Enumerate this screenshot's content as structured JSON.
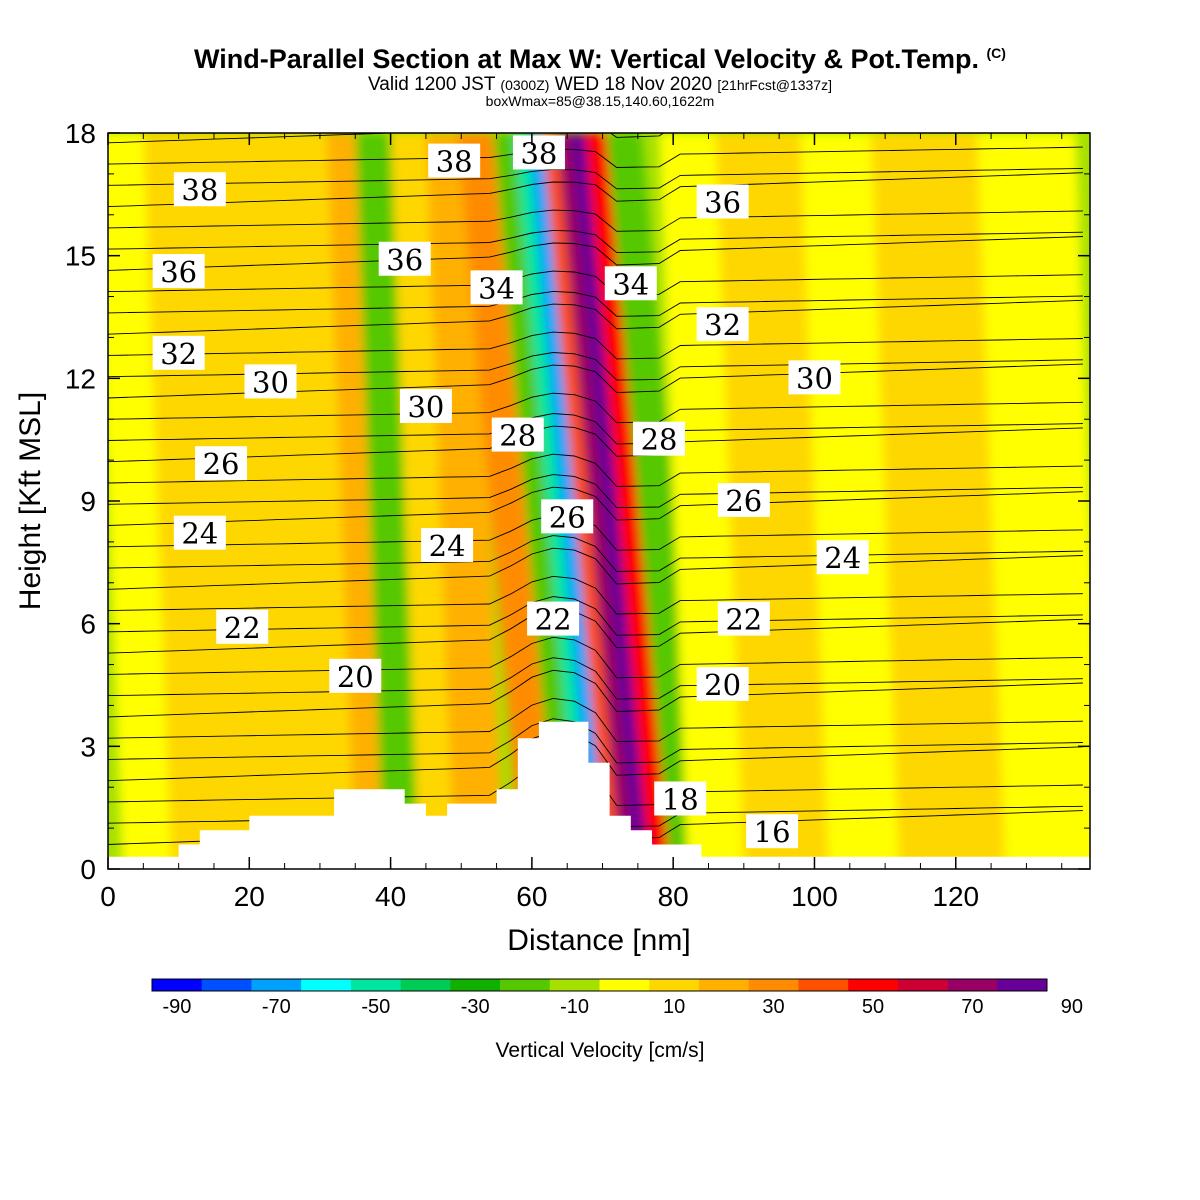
{
  "chart_data": {
    "type": "heatmap",
    "title": "Wind-Parallel Section at Max W: Vertical Velocity & Pot.Temp.",
    "title_mark": "(C)",
    "subtitle_main": "Valid 1200 JST",
    "subtitle_utc": "(0300Z)",
    "subtitle_date": "WED 18 Nov 2020",
    "subtitle_fcst": "[21hrFcst@1337z]",
    "subtitle2": "boxWmax=85@38.15,140.60,1622m",
    "xlabel": "Distance [nm]",
    "ylabel": "Height [Kft MSL]",
    "xlim": [
      0,
      139
    ],
    "ylim": [
      0,
      18
    ],
    "x_ticks": [
      0,
      20,
      40,
      60,
      80,
      100,
      120
    ],
    "y_ticks": [
      0,
      3,
      6,
      9,
      12,
      15,
      18
    ],
    "colorbar": {
      "label": "Vertical Velocity [cm/s]",
      "ticks": [
        -90,
        -70,
        -50,
        -30,
        -10,
        10,
        30,
        50,
        70,
        90
      ],
      "colors": [
        "#0000ff",
        "#0050ff",
        "#00a0ff",
        "#00ffff",
        "#00e6a0",
        "#00cc55",
        "#11b000",
        "#55c800",
        "#a6e000",
        "#ffff00",
        "#ffd700",
        "#ffb000",
        "#ff8c00",
        "#ff5000",
        "#ff0000",
        "#cc0033",
        "#990066",
        "#660099"
      ]
    },
    "velocity_bands": [
      {
        "x0": 0,
        "x1": 7,
        "value": -5
      },
      {
        "x0": 7,
        "x1": 20,
        "value": 5
      },
      {
        "x0": 20,
        "x1": 33,
        "value": 3
      },
      {
        "x0": 33,
        "x1": 37,
        "value": 15
      },
      {
        "x0": 37,
        "x1": 42,
        "value": -22
      },
      {
        "x0": 42,
        "x1": 47,
        "value": 5
      },
      {
        "x0": 47,
        "x1": 54,
        "value": 18
      },
      {
        "x0": 54,
        "x1": 59,
        "value": 25
      },
      {
        "x0": 59,
        "x1": 62,
        "value": -25
      },
      {
        "x0": 62,
        "x1": 64,
        "value": -55
      },
      {
        "x0": 64,
        "x1": 66,
        "value": -80
      },
      {
        "x0": 66,
        "x1": 68,
        "value": 35
      },
      {
        "x0": 68,
        "x1": 70,
        "value": 65
      },
      {
        "x0": 70,
        "x1": 72,
        "value": 85
      },
      {
        "x0": 72,
        "x1": 75,
        "value": 45
      },
      {
        "x0": 75,
        "x1": 80,
        "value": -25
      },
      {
        "x0": 80,
        "x1": 88,
        "value": -8
      },
      {
        "x0": 88,
        "x1": 100,
        "value": 5
      },
      {
        "x0": 100,
        "x1": 110,
        "value": -5
      },
      {
        "x0": 110,
        "x1": 125,
        "value": 5
      },
      {
        "x0": 125,
        "x1": 139,
        "value": -5
      }
    ],
    "terrain": [
      [
        0,
        0.3
      ],
      [
        10,
        0.3
      ],
      [
        10,
        0.6
      ],
      [
        13,
        0.6
      ],
      [
        13,
        0.95
      ],
      [
        20,
        0.95
      ],
      [
        20,
        1.3
      ],
      [
        32,
        1.3
      ],
      [
        32,
        1.95
      ],
      [
        42,
        1.95
      ],
      [
        42,
        1.6
      ],
      [
        45,
        1.6
      ],
      [
        45,
        1.3
      ],
      [
        48,
        1.3
      ],
      [
        48,
        1.6
      ],
      [
        55,
        1.6
      ],
      [
        55,
        1.95
      ],
      [
        58,
        1.95
      ],
      [
        58,
        3.2
      ],
      [
        61,
        3.2
      ],
      [
        61,
        3.6
      ],
      [
        68,
        3.6
      ],
      [
        68,
        2.6
      ],
      [
        71,
        2.6
      ],
      [
        71,
        1.3
      ],
      [
        74,
        1.3
      ],
      [
        74,
        0.95
      ],
      [
        77,
        0.95
      ],
      [
        77,
        0.6
      ],
      [
        84,
        0.6
      ],
      [
        84,
        0.3
      ],
      [
        139,
        0.3
      ]
    ],
    "theta_labels": [
      {
        "text": "38",
        "x": 13,
        "y": 16.6
      },
      {
        "text": "38",
        "x": 49,
        "y": 17.3
      },
      {
        "text": "38",
        "x": 61,
        "y": 17.5
      },
      {
        "text": "36",
        "x": 87,
        "y": 16.3
      },
      {
        "text": "36",
        "x": 10,
        "y": 14.6
      },
      {
        "text": "36",
        "x": 42,
        "y": 14.9
      },
      {
        "text": "34",
        "x": 55,
        "y": 14.2
      },
      {
        "text": "34",
        "x": 74,
        "y": 14.3
      },
      {
        "text": "32",
        "x": 87,
        "y": 13.3
      },
      {
        "text": "32",
        "x": 10,
        "y": 12.6
      },
      {
        "text": "30",
        "x": 23,
        "y": 11.9
      },
      {
        "text": "30",
        "x": 45,
        "y": 11.3
      },
      {
        "text": "30",
        "x": 100,
        "y": 12.0
      },
      {
        "text": "28",
        "x": 58,
        "y": 10.6
      },
      {
        "text": "28",
        "x": 78,
        "y": 10.5
      },
      {
        "text": "26",
        "x": 16,
        "y": 9.9
      },
      {
        "text": "26",
        "x": 65,
        "y": 8.6
      },
      {
        "text": "26",
        "x": 90,
        "y": 9.0
      },
      {
        "text": "24",
        "x": 13,
        "y": 8.2
      },
      {
        "text": "24",
        "x": 48,
        "y": 7.9
      },
      {
        "text": "24",
        "x": 104,
        "y": 7.6
      },
      {
        "text": "22",
        "x": 19,
        "y": 5.9
      },
      {
        "text": "22",
        "x": 63,
        "y": 6.1
      },
      {
        "text": "22",
        "x": 90,
        "y": 6.1
      },
      {
        "text": "20",
        "x": 35,
        "y": 4.7
      },
      {
        "text": "20",
        "x": 87,
        "y": 4.5
      },
      {
        "text": "18",
        "x": 81,
        "y": 1.7
      },
      {
        "text": "16",
        "x": 94,
        "y": 0.9
      }
    ]
  }
}
